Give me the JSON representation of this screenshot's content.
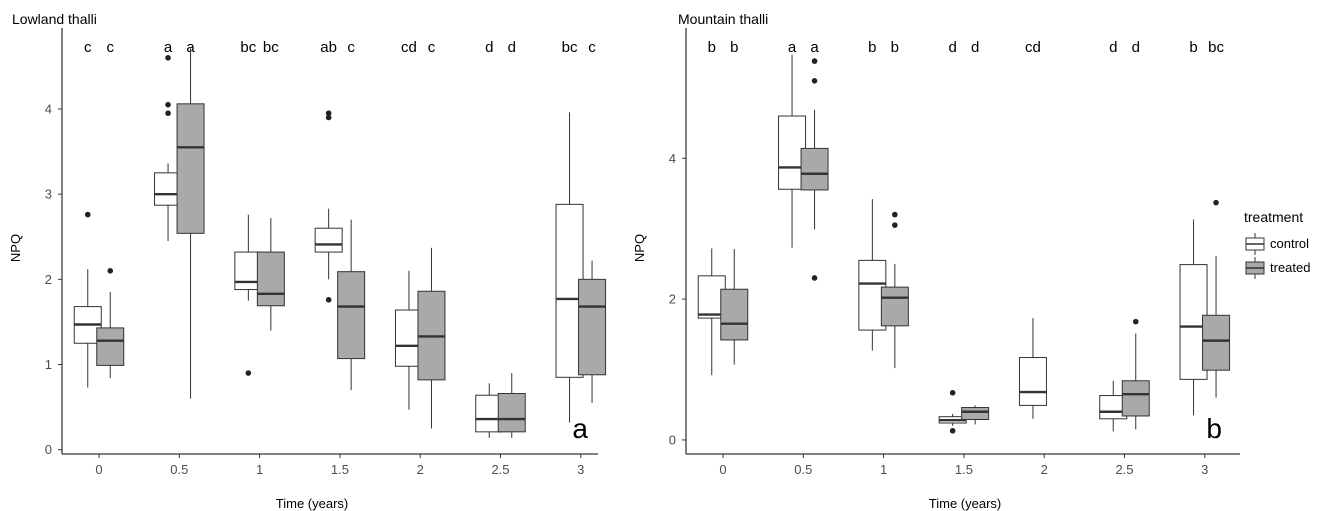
{
  "colors": {
    "control": "#ffffff",
    "treated": "#a9a9a9",
    "stroke": "#333333"
  },
  "legend": {
    "title": "treatment",
    "items": [
      {
        "label": "control",
        "key": "control"
      },
      {
        "label": "treated",
        "key": "treated"
      }
    ]
  },
  "chart_data": [
    {
      "type": "boxplot",
      "title": "Lowland thalli",
      "tag": "a",
      "xlabel": "Time (years)",
      "ylabel": "NPQ",
      "categories": [
        "0",
        "0.5",
        "1",
        "1.5",
        "2",
        "2.5",
        "3"
      ],
      "ylim": [
        -0.05,
        4.95
      ],
      "yticks": [
        0,
        1,
        2,
        3,
        4
      ],
      "letters": [
        [
          "c",
          "c"
        ],
        [
          "a",
          "a"
        ],
        [
          "bc",
          "bc"
        ],
        [
          "ab",
          "c"
        ],
        [
          "cd",
          "c"
        ],
        [
          "d",
          "d"
        ],
        [
          "bc",
          "c"
        ]
      ],
      "series": [
        {
          "name": "control",
          "boxes": [
            {
              "min": 0.73,
              "q1": 1.25,
              "median": 1.47,
              "q3": 1.68,
              "max": 2.12,
              "outliers": [
                2.76
              ]
            },
            {
              "min": 2.45,
              "q1": 2.87,
              "median": 3.0,
              "q3": 3.25,
              "max": 3.36,
              "outliers": [
                3.95,
                4.05,
                4.6
              ]
            },
            {
              "min": 1.75,
              "q1": 1.88,
              "median": 1.97,
              "q3": 2.32,
              "max": 2.76,
              "outliers": [
                0.9
              ]
            },
            {
              "min": 2.0,
              "q1": 2.32,
              "median": 2.41,
              "q3": 2.6,
              "max": 2.83,
              "outliers": [
                1.76,
                3.9,
                3.95
              ]
            },
            {
              "min": 0.47,
              "q1": 0.98,
              "median": 1.22,
              "q3": 1.64,
              "max": 2.1,
              "outliers": []
            },
            {
              "min": 0.14,
              "q1": 0.21,
              "median": 0.36,
              "q3": 0.64,
              "max": 0.78,
              "outliers": []
            },
            {
              "min": 0.32,
              "q1": 0.85,
              "median": 1.77,
              "q3": 2.88,
              "max": 3.96,
              "outliers": []
            }
          ]
        },
        {
          "name": "treated",
          "boxes": [
            {
              "min": 0.84,
              "q1": 0.99,
              "median": 1.28,
              "q3": 1.43,
              "max": 1.85,
              "outliers": [
                2.1
              ]
            },
            {
              "min": 0.6,
              "q1": 2.54,
              "median": 3.55,
              "q3": 4.06,
              "max": 4.71,
              "outliers": []
            },
            {
              "min": 1.4,
              "q1": 1.69,
              "median": 1.83,
              "q3": 2.32,
              "max": 2.72,
              "outliers": []
            },
            {
              "min": 0.7,
              "q1": 1.07,
              "median": 1.68,
              "q3": 2.09,
              "max": 2.7,
              "outliers": []
            },
            {
              "min": 0.25,
              "q1": 0.82,
              "median": 1.33,
              "q3": 1.86,
              "max": 2.37,
              "outliers": []
            },
            {
              "min": 0.14,
              "q1": 0.21,
              "median": 0.36,
              "q3": 0.66,
              "max": 0.9,
              "outliers": []
            },
            {
              "min": 0.55,
              "q1": 0.88,
              "median": 1.68,
              "q3": 2.0,
              "max": 2.22,
              "outliers": []
            }
          ]
        }
      ]
    },
    {
      "type": "boxplot",
      "title": "Mountain thalli",
      "tag": "b",
      "xlabel": "Time (years)",
      "ylabel": "NPQ",
      "categories": [
        "0",
        "0.5",
        "1",
        "1.5",
        "2",
        "2.5",
        "3"
      ],
      "ylim": [
        -0.2,
        5.85
      ],
      "yticks": [
        0,
        2,
        4
      ],
      "letters": [
        [
          "b",
          "b"
        ],
        [
          "a",
          "a"
        ],
        [
          "b",
          "b"
        ],
        [
          "d",
          "d"
        ],
        [
          "cd",
          ""
        ],
        [
          "d",
          "d"
        ],
        [
          "b",
          "bc"
        ]
      ],
      "series": [
        {
          "name": "control",
          "boxes": [
            {
              "min": 0.92,
              "q1": 1.73,
              "median": 1.78,
              "q3": 2.33,
              "max": 2.72,
              "outliers": []
            },
            {
              "min": 2.73,
              "q1": 3.56,
              "median": 3.87,
              "q3": 4.6,
              "max": 5.47,
              "outliers": []
            },
            {
              "min": 1.27,
              "q1": 1.56,
              "median": 2.22,
              "q3": 2.55,
              "max": 3.42,
              "outliers": []
            },
            {
              "min": 0.2,
              "q1": 0.24,
              "median": 0.28,
              "q3": 0.33,
              "max": 0.37,
              "outliers": [
                0.13,
                0.67
              ]
            },
            {
              "min": 0.3,
              "q1": 0.49,
              "median": 0.68,
              "q3": 1.17,
              "max": 1.73,
              "outliers": []
            },
            {
              "min": 0.12,
              "q1": 0.3,
              "median": 0.4,
              "q3": 0.63,
              "max": 0.84,
              "outliers": []
            },
            {
              "min": 0.35,
              "q1": 0.86,
              "median": 1.61,
              "q3": 2.49,
              "max": 3.13,
              "outliers": []
            }
          ]
        },
        {
          "name": "treated",
          "boxes": [
            {
              "min": 1.07,
              "q1": 1.42,
              "median": 1.65,
              "q3": 2.14,
              "max": 2.71,
              "outliers": []
            },
            {
              "min": 2.99,
              "q1": 3.55,
              "median": 3.78,
              "q3": 4.14,
              "max": 4.69,
              "outliers": [
                2.3,
                5.1,
                5.38
              ]
            },
            {
              "min": 1.02,
              "q1": 1.62,
              "median": 2.02,
              "q3": 2.17,
              "max": 2.5,
              "outliers": [
                3.05,
                3.2
              ]
            },
            {
              "min": 0.22,
              "q1": 0.29,
              "median": 0.4,
              "q3": 0.46,
              "max": 0.49,
              "outliers": []
            },
            null,
            {
              "min": 0.15,
              "q1": 0.34,
              "median": 0.65,
              "q3": 0.84,
              "max": 1.51,
              "outliers": [
                1.68
              ]
            },
            {
              "min": 0.6,
              "q1": 0.99,
              "median": 1.41,
              "q3": 1.77,
              "max": 2.61,
              "outliers": [
                3.37
              ]
            }
          ]
        }
      ]
    }
  ]
}
